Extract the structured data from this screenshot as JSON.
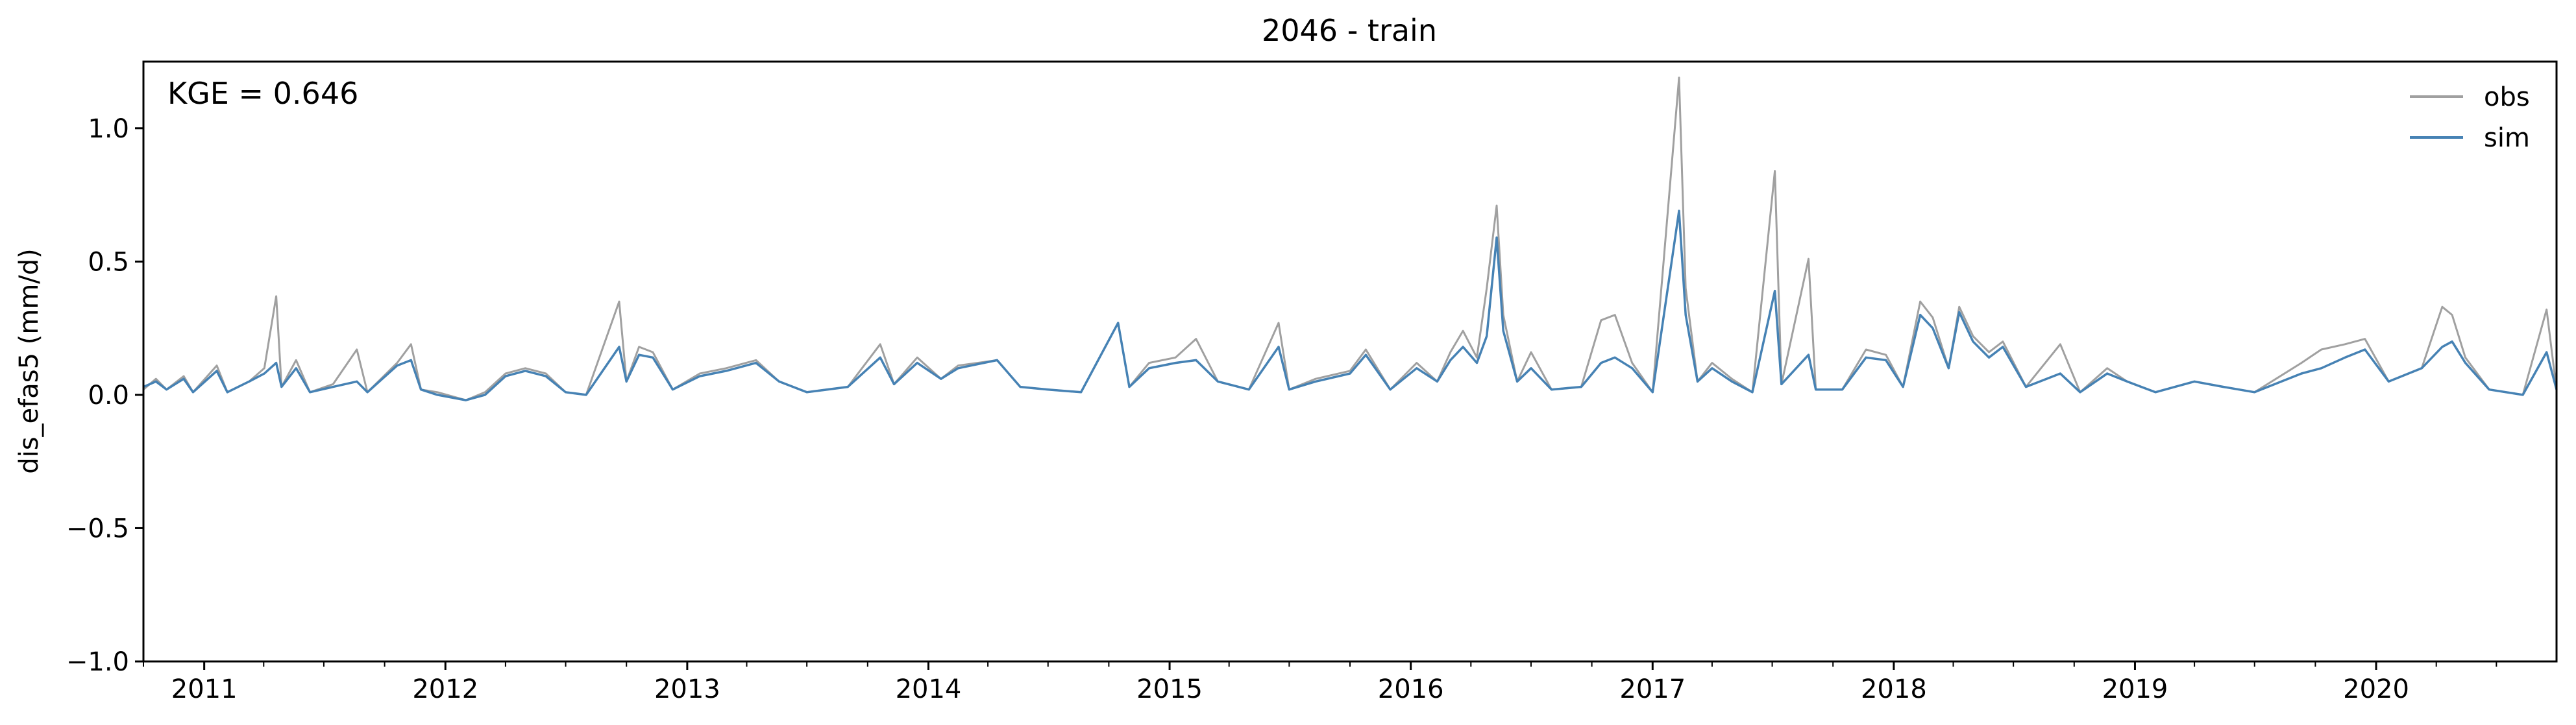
{
  "chart_data": {
    "type": "line",
    "title": "2046 - train",
    "xlabel": "",
    "ylabel": "dis_efas5 (mm/d)",
    "annotation": "KGE = 0.646",
    "x_range": [
      "2010-10-01",
      "2020-09-30"
    ],
    "ylim": [
      -1.0,
      1.25
    ],
    "y_ticks": [
      -1.0,
      -0.5,
      0.0,
      0.5,
      1.0
    ],
    "y_tick_labels": [
      "−1.0",
      "−0.5",
      "0.0",
      "0.5",
      "1.0"
    ],
    "x_tick_labels": [
      "2011",
      "2012",
      "2013",
      "2014",
      "2015",
      "2016",
      "2017",
      "2018",
      "2019",
      "2020"
    ],
    "x_tick_dates": [
      "2011-01-01",
      "2012-01-01",
      "2013-01-01",
      "2014-01-01",
      "2015-01-01",
      "2016-01-01",
      "2017-01-01",
      "2018-01-01",
      "2019-01-01",
      "2020-01-01"
    ],
    "grid": false,
    "legend_position": "top-right",
    "series": [
      {
        "name": "obs",
        "color": "#a0a0a0",
        "data": [
          [
            "2010-10-01",
            0.02
          ],
          [
            "2010-10-20",
            0.06
          ],
          [
            "2010-11-05",
            0.02
          ],
          [
            "2010-12-01",
            0.07
          ],
          [
            "2010-12-15",
            0.01
          ],
          [
            "2011-01-20",
            0.11
          ],
          [
            "2011-02-05",
            0.01
          ],
          [
            "2011-03-10",
            0.05
          ],
          [
            "2011-04-02",
            0.1
          ],
          [
            "2011-04-20",
            0.37
          ],
          [
            "2011-04-28",
            0.03
          ],
          [
            "2011-05-20",
            0.13
          ],
          [
            "2011-06-10",
            0.01
          ],
          [
            "2011-07-15",
            0.04
          ],
          [
            "2011-08-20",
            0.17
          ],
          [
            "2011-09-05",
            0.01
          ],
          [
            "2011-10-20",
            0.12
          ],
          [
            "2011-11-10",
            0.19
          ],
          [
            "2011-11-25",
            0.02
          ],
          [
            "2011-12-20",
            0.01
          ],
          [
            "2012-02-01",
            -0.02
          ],
          [
            "2012-03-01",
            0.01
          ],
          [
            "2012-04-01",
            0.08
          ],
          [
            "2012-05-01",
            0.1
          ],
          [
            "2012-06-01",
            0.08
          ],
          [
            "2012-07-01",
            0.01
          ],
          [
            "2012-08-01",
            0.0
          ],
          [
            "2012-09-20",
            0.35
          ],
          [
            "2012-10-01",
            0.05
          ],
          [
            "2012-10-20",
            0.18
          ],
          [
            "2012-11-10",
            0.16
          ],
          [
            "2012-12-10",
            0.02
          ],
          [
            "2013-01-20",
            0.08
          ],
          [
            "2013-03-01",
            0.1
          ],
          [
            "2013-04-15",
            0.13
          ],
          [
            "2013-05-20",
            0.05
          ],
          [
            "2013-07-01",
            0.01
          ],
          [
            "2013-09-01",
            0.03
          ],
          [
            "2013-10-20",
            0.19
          ],
          [
            "2013-11-10",
            0.04
          ],
          [
            "2013-12-15",
            0.14
          ],
          [
            "2014-01-20",
            0.06
          ],
          [
            "2014-02-15",
            0.11
          ],
          [
            "2014-04-15",
            0.13
          ],
          [
            "2014-05-20",
            0.03
          ],
          [
            "2014-07-01",
            0.02
          ],
          [
            "2014-08-20",
            0.01
          ],
          [
            "2014-10-15",
            0.27
          ],
          [
            "2014-11-01",
            0.03
          ],
          [
            "2014-12-01",
            0.12
          ],
          [
            "2015-01-10",
            0.14
          ],
          [
            "2015-02-10",
            0.21
          ],
          [
            "2015-03-15",
            0.05
          ],
          [
            "2015-05-01",
            0.02
          ],
          [
            "2015-06-15",
            0.27
          ],
          [
            "2015-07-01",
            0.02
          ],
          [
            "2015-08-10",
            0.06
          ],
          [
            "2015-10-01",
            0.09
          ],
          [
            "2015-10-25",
            0.17
          ],
          [
            "2015-12-01",
            0.02
          ],
          [
            "2016-01-10",
            0.12
          ],
          [
            "2016-02-10",
            0.05
          ],
          [
            "2016-03-01",
            0.16
          ],
          [
            "2016-03-20",
            0.24
          ],
          [
            "2016-04-10",
            0.14
          ],
          [
            "2016-04-25",
            0.4
          ],
          [
            "2016-05-10",
            0.71
          ],
          [
            "2016-05-20",
            0.3
          ],
          [
            "2016-06-10",
            0.05
          ],
          [
            "2016-07-01",
            0.16
          ],
          [
            "2016-08-01",
            0.02
          ],
          [
            "2016-09-15",
            0.03
          ],
          [
            "2016-10-15",
            0.28
          ],
          [
            "2016-11-05",
            0.3
          ],
          [
            "2016-12-01",
            0.12
          ],
          [
            "2017-01-01",
            0.01
          ],
          [
            "2017-02-10",
            1.19
          ],
          [
            "2017-02-20",
            0.4
          ],
          [
            "2017-03-10",
            0.05
          ],
          [
            "2017-04-01",
            0.12
          ],
          [
            "2017-05-01",
            0.06
          ],
          [
            "2017-06-01",
            0.01
          ],
          [
            "2017-07-05",
            0.84
          ],
          [
            "2017-07-15",
            0.04
          ],
          [
            "2017-08-25",
            0.51
          ],
          [
            "2017-09-05",
            0.02
          ],
          [
            "2017-10-15",
            0.02
          ],
          [
            "2017-11-20",
            0.17
          ],
          [
            "2017-12-20",
            0.15
          ],
          [
            "2018-01-15",
            0.03
          ],
          [
            "2018-02-10",
            0.35
          ],
          [
            "2018-03-01",
            0.29
          ],
          [
            "2018-03-25",
            0.1
          ],
          [
            "2018-04-10",
            0.33
          ],
          [
            "2018-05-01",
            0.22
          ],
          [
            "2018-05-25",
            0.16
          ],
          [
            "2018-06-15",
            0.2
          ],
          [
            "2018-07-20",
            0.03
          ],
          [
            "2018-09-10",
            0.19
          ],
          [
            "2018-10-10",
            0.01
          ],
          [
            "2018-11-20",
            0.1
          ],
          [
            "2018-12-20",
            0.05
          ],
          [
            "2019-02-01",
            0.01
          ],
          [
            "2019-04-01",
            0.05
          ],
          [
            "2019-05-15",
            0.03
          ],
          [
            "2019-07-01",
            0.01
          ],
          [
            "2019-09-10",
            0.12
          ],
          [
            "2019-10-10",
            0.17
          ],
          [
            "2019-11-15",
            0.19
          ],
          [
            "2019-12-15",
            0.21
          ],
          [
            "2020-01-20",
            0.05
          ],
          [
            "2020-03-10",
            0.1
          ],
          [
            "2020-04-10",
            0.33
          ],
          [
            "2020-04-25",
            0.3
          ],
          [
            "2020-05-15",
            0.14
          ],
          [
            "2020-06-20",
            0.02
          ],
          [
            "2020-08-10",
            0.0
          ],
          [
            "2020-09-15",
            0.32
          ],
          [
            "2020-09-30",
            0.02
          ]
        ]
      },
      {
        "name": "sim",
        "color": "#4682b4",
        "data": [
          [
            "2010-10-01",
            0.03
          ],
          [
            "2010-10-20",
            0.05
          ],
          [
            "2010-11-05",
            0.02
          ],
          [
            "2010-12-01",
            0.06
          ],
          [
            "2010-12-15",
            0.01
          ],
          [
            "2011-01-20",
            0.09
          ],
          [
            "2011-02-05",
            0.01
          ],
          [
            "2011-03-10",
            0.05
          ],
          [
            "2011-04-02",
            0.08
          ],
          [
            "2011-04-20",
            0.12
          ],
          [
            "2011-04-28",
            0.03
          ],
          [
            "2011-05-20",
            0.1
          ],
          [
            "2011-06-10",
            0.01
          ],
          [
            "2011-07-15",
            0.03
          ],
          [
            "2011-08-20",
            0.05
          ],
          [
            "2011-09-05",
            0.01
          ],
          [
            "2011-10-20",
            0.11
          ],
          [
            "2011-11-10",
            0.13
          ],
          [
            "2011-11-25",
            0.02
          ],
          [
            "2011-12-20",
            0.0
          ],
          [
            "2012-02-01",
            -0.02
          ],
          [
            "2012-03-01",
            0.0
          ],
          [
            "2012-04-01",
            0.07
          ],
          [
            "2012-05-01",
            0.09
          ],
          [
            "2012-06-01",
            0.07
          ],
          [
            "2012-07-01",
            0.01
          ],
          [
            "2012-08-01",
            0.0
          ],
          [
            "2012-09-20",
            0.18
          ],
          [
            "2012-10-01",
            0.05
          ],
          [
            "2012-10-20",
            0.15
          ],
          [
            "2012-11-10",
            0.14
          ],
          [
            "2012-12-10",
            0.02
          ],
          [
            "2013-01-20",
            0.07
          ],
          [
            "2013-03-01",
            0.09
          ],
          [
            "2013-04-15",
            0.12
          ],
          [
            "2013-05-20",
            0.05
          ],
          [
            "2013-07-01",
            0.01
          ],
          [
            "2013-09-01",
            0.03
          ],
          [
            "2013-10-20",
            0.14
          ],
          [
            "2013-11-10",
            0.04
          ],
          [
            "2013-12-15",
            0.12
          ],
          [
            "2014-01-20",
            0.06
          ],
          [
            "2014-02-15",
            0.1
          ],
          [
            "2014-04-15",
            0.13
          ],
          [
            "2014-05-20",
            0.03
          ],
          [
            "2014-07-01",
            0.02
          ],
          [
            "2014-08-20",
            0.01
          ],
          [
            "2014-10-15",
            0.27
          ],
          [
            "2014-11-01",
            0.03
          ],
          [
            "2014-12-01",
            0.1
          ],
          [
            "2015-01-10",
            0.12
          ],
          [
            "2015-02-10",
            0.13
          ],
          [
            "2015-03-15",
            0.05
          ],
          [
            "2015-05-01",
            0.02
          ],
          [
            "2015-06-15",
            0.18
          ],
          [
            "2015-07-01",
            0.02
          ],
          [
            "2015-08-10",
            0.05
          ],
          [
            "2015-10-01",
            0.08
          ],
          [
            "2015-10-25",
            0.15
          ],
          [
            "2015-12-01",
            0.02
          ],
          [
            "2016-01-10",
            0.1
          ],
          [
            "2016-02-10",
            0.05
          ],
          [
            "2016-03-01",
            0.13
          ],
          [
            "2016-03-20",
            0.18
          ],
          [
            "2016-04-10",
            0.12
          ],
          [
            "2016-04-25",
            0.22
          ],
          [
            "2016-05-10",
            0.59
          ],
          [
            "2016-05-20",
            0.24
          ],
          [
            "2016-06-10",
            0.05
          ],
          [
            "2016-07-01",
            0.1
          ],
          [
            "2016-08-01",
            0.02
          ],
          [
            "2016-09-15",
            0.03
          ],
          [
            "2016-10-15",
            0.12
          ],
          [
            "2016-11-05",
            0.14
          ],
          [
            "2016-12-01",
            0.1
          ],
          [
            "2017-01-01",
            0.01
          ],
          [
            "2017-02-10",
            0.69
          ],
          [
            "2017-02-20",
            0.3
          ],
          [
            "2017-03-10",
            0.05
          ],
          [
            "2017-04-01",
            0.1
          ],
          [
            "2017-05-01",
            0.05
          ],
          [
            "2017-06-01",
            0.01
          ],
          [
            "2017-07-05",
            0.39
          ],
          [
            "2017-07-15",
            0.04
          ],
          [
            "2017-08-25",
            0.15
          ],
          [
            "2017-09-05",
            0.02
          ],
          [
            "2017-10-15",
            0.02
          ],
          [
            "2017-11-20",
            0.14
          ],
          [
            "2017-12-20",
            0.13
          ],
          [
            "2018-01-15",
            0.03
          ],
          [
            "2018-02-10",
            0.3
          ],
          [
            "2018-03-01",
            0.25
          ],
          [
            "2018-03-25",
            0.1
          ],
          [
            "2018-04-10",
            0.31
          ],
          [
            "2018-05-01",
            0.2
          ],
          [
            "2018-05-25",
            0.14
          ],
          [
            "2018-06-15",
            0.18
          ],
          [
            "2018-07-20",
            0.03
          ],
          [
            "2018-09-10",
            0.08
          ],
          [
            "2018-10-10",
            0.01
          ],
          [
            "2018-11-20",
            0.08
          ],
          [
            "2018-12-20",
            0.05
          ],
          [
            "2019-02-01",
            0.01
          ],
          [
            "2019-04-01",
            0.05
          ],
          [
            "2019-05-15",
            0.03
          ],
          [
            "2019-07-01",
            0.01
          ],
          [
            "2019-09-10",
            0.08
          ],
          [
            "2019-10-10",
            0.1
          ],
          [
            "2019-11-15",
            0.14
          ],
          [
            "2019-12-15",
            0.17
          ],
          [
            "2020-01-20",
            0.05
          ],
          [
            "2020-03-10",
            0.1
          ],
          [
            "2020-04-10",
            0.18
          ],
          [
            "2020-04-25",
            0.2
          ],
          [
            "2020-05-15",
            0.12
          ],
          [
            "2020-06-20",
            0.02
          ],
          [
            "2020-08-10",
            0.0
          ],
          [
            "2020-09-15",
            0.16
          ],
          [
            "2020-09-30",
            0.02
          ]
        ]
      }
    ]
  }
}
